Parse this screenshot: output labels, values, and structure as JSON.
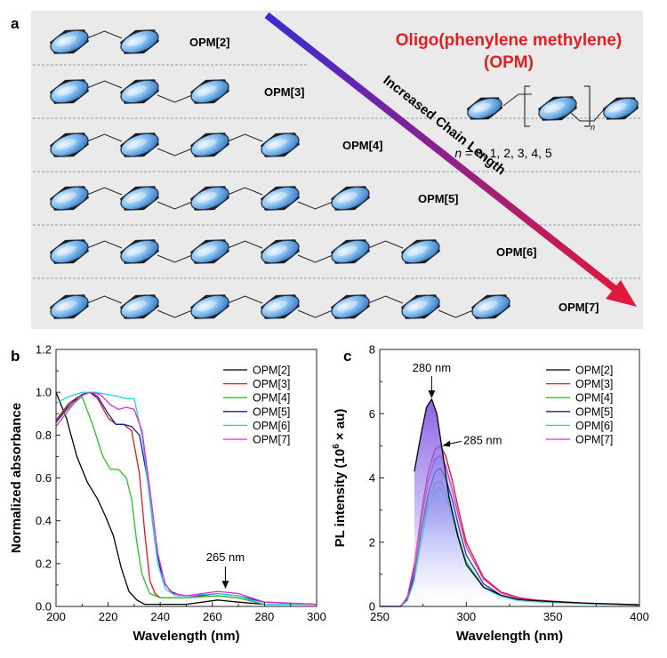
{
  "panel_a": {
    "label": "a",
    "title_line1": "Oligo(phenylene methylene)",
    "title_line2": "(OPM)",
    "arrow_label": "Increased Chain Length",
    "repeat_subscript": "n",
    "n_values_prefix": "n",
    "n_values_text": " = 0, 1, 2, 3, 4, 5",
    "colors": {
      "background": "#eaeaea",
      "title": "#e02020",
      "arrow_start": "#3a2bd6",
      "arrow_end": "#e0183c",
      "ring_fill": "#7cb8ec"
    },
    "molecules": [
      {
        "name": "OPM[2]",
        "rings": 2
      },
      {
        "name": "OPM[3]",
        "rings": 3
      },
      {
        "name": "OPM[4]",
        "rings": 4
      },
      {
        "name": "OPM[5]",
        "rings": 5
      },
      {
        "name": "OPM[6]",
        "rings": 6
      },
      {
        "name": "OPM[7]",
        "rings": 7
      }
    ]
  },
  "chart_data": [
    {
      "panel": "b",
      "type": "line",
      "xlabel": "Wavelength (nm)",
      "ylabel": "Normalized absorbance",
      "xlim": [
        200,
        300
      ],
      "ylim": [
        0,
        1.2
      ],
      "xticks": [
        "200",
        "220",
        "240",
        "260",
        "280",
        "300"
      ],
      "yticks": [
        "0.0",
        "0.2",
        "0.4",
        "0.6",
        "0.8",
        "1.0",
        "1.2"
      ],
      "legend_position": "top-right",
      "annotation": {
        "text": "265 nm",
        "x": 265,
        "y": 0.07
      },
      "series": [
        {
          "name": "OPM[2]",
          "color": "#000000",
          "x": [
            200,
            204,
            208,
            212,
            216,
            219,
            222,
            225,
            228,
            231,
            234,
            240,
            250,
            262,
            270,
            280,
            300
          ],
          "y": [
            1.0,
            0.88,
            0.7,
            0.58,
            0.5,
            0.42,
            0.33,
            0.18,
            0.07,
            0.03,
            0.01,
            0.01,
            0.01,
            0.03,
            0.02,
            0.01,
            0.01
          ]
        },
        {
          "name": "OPM[3]",
          "color": "#e01818",
          "x": [
            200,
            205,
            210,
            213,
            216,
            220,
            223,
            226,
            229,
            232,
            234,
            236,
            238,
            240,
            245,
            250,
            262,
            270,
            280,
            300
          ],
          "y": [
            0.87,
            0.95,
            0.99,
            1.0,
            0.97,
            0.88,
            0.85,
            0.85,
            0.82,
            0.62,
            0.35,
            0.12,
            0.06,
            0.04,
            0.04,
            0.04,
            0.05,
            0.04,
            0.01,
            0.01
          ]
        },
        {
          "name": "OPM[4]",
          "color": "#22c422",
          "x": [
            200,
            205,
            210,
            214,
            218,
            221,
            224,
            227,
            229,
            231,
            233,
            236,
            240,
            245,
            250,
            262,
            270,
            280,
            300
          ],
          "y": [
            0.86,
            0.93,
            0.98,
            0.85,
            0.7,
            0.64,
            0.64,
            0.6,
            0.5,
            0.3,
            0.15,
            0.06,
            0.04,
            0.04,
            0.04,
            0.05,
            0.04,
            0.01,
            0.01
          ]
        },
        {
          "name": "OPM[5]",
          "color": "#1a1aa8",
          "x": [
            200,
            205,
            210,
            213,
            216,
            220,
            223,
            226,
            229,
            232,
            235,
            238,
            241,
            244,
            248,
            255,
            262,
            270,
            280,
            300
          ],
          "y": [
            0.86,
            0.94,
            0.99,
            1.0,
            0.98,
            0.9,
            0.85,
            0.85,
            0.84,
            0.8,
            0.6,
            0.3,
            0.12,
            0.07,
            0.05,
            0.05,
            0.06,
            0.05,
            0.02,
            0.01
          ]
        },
        {
          "name": "OPM[6]",
          "color": "#20d4d4",
          "x": [
            200,
            205,
            210,
            215,
            220,
            224,
            227,
            230,
            233,
            236,
            239,
            242,
            246,
            250,
            262,
            270,
            280,
            300
          ],
          "y": [
            0.95,
            0.98,
            1.0,
            1.0,
            0.99,
            0.98,
            0.97,
            0.97,
            0.8,
            0.5,
            0.2,
            0.08,
            0.05,
            0.05,
            0.06,
            0.05,
            0.01,
            0.01
          ]
        },
        {
          "name": "OPM[7]",
          "color": "#e02ad8",
          "x": [
            200,
            205,
            209,
            213,
            217,
            221,
            224,
            227,
            230,
            233,
            236,
            239,
            242,
            245,
            250,
            262,
            270,
            280,
            300
          ],
          "y": [
            0.84,
            0.92,
            0.98,
            1.0,
            0.99,
            0.94,
            0.92,
            0.93,
            0.92,
            0.82,
            0.55,
            0.25,
            0.1,
            0.06,
            0.05,
            0.07,
            0.06,
            0.02,
            0.01
          ]
        }
      ]
    },
    {
      "panel": "c",
      "type": "area",
      "xlabel": "Wavelength (nm)",
      "ylabel_main": "PL intensity (10",
      "ylabel_sup": "6",
      "ylabel_tail": " × au)",
      "xlim": [
        250,
        400
      ],
      "ylim": [
        0,
        8
      ],
      "xticks": [
        "250",
        "300",
        "350",
        "400"
      ],
      "yticks": [
        "0",
        "2",
        "4",
        "6",
        "8"
      ],
      "legend_position": "top-right",
      "annotations": [
        {
          "text": "280 nm",
          "x": 280,
          "y": 6.45
        },
        {
          "text": "285 nm",
          "x": 285,
          "y": 5.0
        }
      ],
      "series": [
        {
          "name": "OPM[2]",
          "color": "#000000",
          "x": [
            270,
            274,
            277,
            280,
            283,
            286,
            290,
            295,
            300,
            310,
            320,
            330,
            340,
            350,
            370,
            400
          ],
          "y": [
            4.2,
            5.4,
            6.2,
            6.45,
            6.0,
            4.9,
            3.4,
            2.2,
            1.3,
            0.6,
            0.35,
            0.22,
            0.18,
            0.15,
            0.1,
            0.05
          ]
        },
        {
          "name": "OPM[3]",
          "color": "#e01818",
          "x": [
            250,
            262,
            266,
            270,
            274,
            278,
            282,
            285,
            288,
            292,
            296,
            300,
            310,
            320,
            330,
            340,
            350,
            370,
            400
          ],
          "y": [
            0,
            0,
            0.3,
            1.3,
            2.9,
            4.2,
            4.9,
            5.0,
            4.7,
            3.9,
            2.9,
            2.0,
            0.9,
            0.45,
            0.28,
            0.2,
            0.16,
            0.1,
            0.05
          ]
        },
        {
          "name": "OPM[4]",
          "color": "#22c422",
          "x": [
            250,
            262,
            266,
            270,
            274,
            278,
            282,
            285,
            288,
            292,
            296,
            300,
            310,
            320,
            330,
            340,
            350,
            370,
            400
          ],
          "y": [
            0,
            0,
            0.2,
            0.9,
            2.2,
            3.3,
            3.85,
            3.9,
            3.6,
            2.9,
            2.1,
            1.4,
            0.6,
            0.3,
            0.18,
            0.14,
            0.12,
            0.08,
            0.04
          ]
        },
        {
          "name": "OPM[5]",
          "color": "#1a1aa8",
          "x": [
            250,
            262,
            266,
            270,
            274,
            278,
            282,
            285,
            288,
            292,
            296,
            300,
            310,
            320,
            330,
            340,
            350,
            370,
            400
          ],
          "y": [
            0,
            0,
            0.22,
            1.0,
            2.4,
            3.5,
            4.2,
            4.3,
            4.0,
            3.3,
            2.4,
            1.6,
            0.7,
            0.35,
            0.22,
            0.16,
            0.13,
            0.09,
            0.04
          ]
        },
        {
          "name": "OPM[6]",
          "color": "#20d4d4",
          "x": [
            250,
            262,
            266,
            270,
            274,
            278,
            282,
            285,
            288,
            292,
            296,
            300,
            310,
            320,
            330,
            340,
            350,
            370,
            400
          ],
          "y": [
            0,
            0,
            0.18,
            0.8,
            2.0,
            3.1,
            3.6,
            3.7,
            3.45,
            2.8,
            2.0,
            1.35,
            0.58,
            0.3,
            0.18,
            0.14,
            0.12,
            0.08,
            0.04
          ]
        },
        {
          "name": "OPM[7]",
          "color": "#e02ad8",
          "x": [
            250,
            262,
            266,
            270,
            274,
            278,
            282,
            285,
            288,
            292,
            296,
            300,
            310,
            320,
            330,
            340,
            350,
            370,
            400
          ],
          "y": [
            0,
            0,
            0.28,
            1.2,
            2.7,
            3.9,
            4.6,
            4.7,
            4.4,
            3.6,
            2.7,
            1.85,
            0.85,
            0.42,
            0.26,
            0.18,
            0.15,
            0.1,
            0.05
          ]
        }
      ]
    }
  ]
}
